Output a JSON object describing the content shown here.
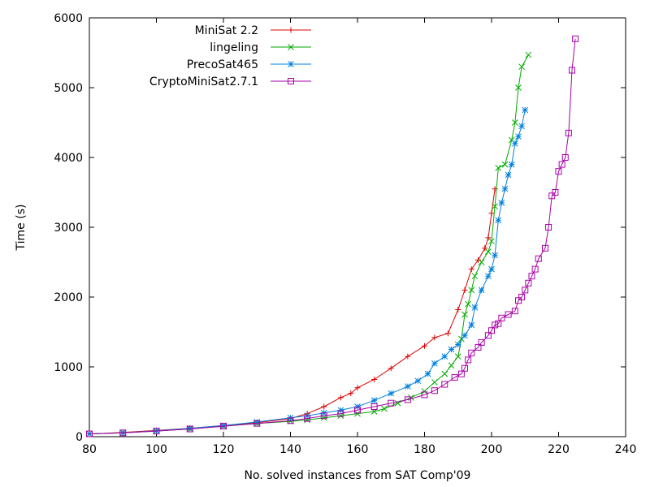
{
  "chart_data": {
    "type": "line",
    "title": "",
    "xlabel": "No. solved instances from SAT Comp'09",
    "ylabel": "Time (s)",
    "xlim": [
      80,
      240
    ],
    "ylim": [
      0,
      6000
    ],
    "xticks": [
      80,
      100,
      120,
      140,
      160,
      180,
      200,
      220,
      240
    ],
    "yticks": [
      0,
      1000,
      2000,
      3000,
      4000,
      5000,
      6000
    ],
    "grid": false,
    "legend": "top-left",
    "series": [
      {
        "name": "MiniSat 2.2",
        "color": "#dd0000",
        "marker": "plus",
        "points": [
          [
            80,
            40
          ],
          [
            90,
            60
          ],
          [
            100,
            90
          ],
          [
            110,
            120
          ],
          [
            120,
            160
          ],
          [
            130,
            200
          ],
          [
            140,
            260
          ],
          [
            145,
            330
          ],
          [
            150,
            430
          ],
          [
            155,
            560
          ],
          [
            158,
            620
          ],
          [
            160,
            700
          ],
          [
            165,
            820
          ],
          [
            170,
            980
          ],
          [
            175,
            1150
          ],
          [
            180,
            1300
          ],
          [
            183,
            1420
          ],
          [
            187,
            1480
          ],
          [
            190,
            1820
          ],
          [
            192,
            2100
          ],
          [
            194,
            2400
          ],
          [
            196,
            2530
          ],
          [
            198,
            2700
          ],
          [
            199,
            2850
          ],
          [
            200,
            3200
          ],
          [
            201,
            3550
          ]
        ]
      },
      {
        "name": "lingeling",
        "color": "#00aa00",
        "marker": "x",
        "points": [
          [
            80,
            40
          ],
          [
            90,
            55
          ],
          [
            100,
            80
          ],
          [
            110,
            110
          ],
          [
            120,
            150
          ],
          [
            130,
            190
          ],
          [
            140,
            220
          ],
          [
            145,
            240
          ],
          [
            150,
            270
          ],
          [
            155,
            300
          ],
          [
            160,
            330
          ],
          [
            165,
            360
          ],
          [
            168,
            400
          ],
          [
            172,
            480
          ],
          [
            176,
            560
          ],
          [
            180,
            650
          ],
          [
            183,
            780
          ],
          [
            186,
            900
          ],
          [
            188,
            1020
          ],
          [
            190,
            1150
          ],
          [
            191,
            1400
          ],
          [
            192,
            1750
          ],
          [
            193,
            1900
          ],
          [
            194,
            2100
          ],
          [
            195,
            2300
          ],
          [
            197,
            2500
          ],
          [
            199,
            2650
          ],
          [
            200,
            2800
          ],
          [
            201,
            3300
          ],
          [
            202,
            3850
          ],
          [
            204,
            3900
          ],
          [
            206,
            4250
          ],
          [
            207,
            4500
          ],
          [
            208,
            5000
          ],
          [
            209,
            5300
          ],
          [
            211,
            5470
          ]
        ]
      },
      {
        "name": "PrecoSat465",
        "color": "#0080dd",
        "marker": "star",
        "points": [
          [
            80,
            40
          ],
          [
            90,
            55
          ],
          [
            100,
            85
          ],
          [
            110,
            120
          ],
          [
            120,
            160
          ],
          [
            130,
            210
          ],
          [
            140,
            270
          ],
          [
            145,
            300
          ],
          [
            150,
            340
          ],
          [
            155,
            380
          ],
          [
            160,
            430
          ],
          [
            165,
            520
          ],
          [
            170,
            620
          ],
          [
            175,
            720
          ],
          [
            178,
            800
          ],
          [
            181,
            900
          ],
          [
            183,
            1050
          ],
          [
            186,
            1150
          ],
          [
            188,
            1250
          ],
          [
            190,
            1320
          ],
          [
            192,
            1450
          ],
          [
            194,
            1600
          ],
          [
            195,
            1850
          ],
          [
            197,
            2100
          ],
          [
            199,
            2300
          ],
          [
            200,
            2400
          ],
          [
            201,
            2600
          ],
          [
            202,
            3100
          ],
          [
            203,
            3350
          ],
          [
            204,
            3550
          ],
          [
            205,
            3750
          ],
          [
            206,
            3900
          ],
          [
            207,
            4200
          ],
          [
            208,
            4300
          ],
          [
            209,
            4450
          ],
          [
            210,
            4680
          ]
        ]
      },
      {
        "name": "CryptoMiniSat2.7.1",
        "color": "#aa00aa",
        "marker": "square",
        "points": [
          [
            80,
            40
          ],
          [
            90,
            55
          ],
          [
            100,
            80
          ],
          [
            110,
            110
          ],
          [
            120,
            150
          ],
          [
            130,
            190
          ],
          [
            140,
            230
          ],
          [
            145,
            260
          ],
          [
            150,
            300
          ],
          [
            155,
            330
          ],
          [
            160,
            380
          ],
          [
            165,
            430
          ],
          [
            170,
            480
          ],
          [
            175,
            530
          ],
          [
            180,
            600
          ],
          [
            183,
            660
          ],
          [
            186,
            750
          ],
          [
            189,
            850
          ],
          [
            191,
            900
          ],
          [
            192,
            980
          ],
          [
            193,
            1100
          ],
          [
            194,
            1200
          ],
          [
            196,
            1280
          ],
          [
            197,
            1350
          ],
          [
            199,
            1450
          ],
          [
            200,
            1520
          ],
          [
            201,
            1600
          ],
          [
            202,
            1620
          ],
          [
            203,
            1700
          ],
          [
            205,
            1750
          ],
          [
            207,
            1800
          ],
          [
            208,
            1950
          ],
          [
            209,
            2000
          ],
          [
            210,
            2100
          ],
          [
            211,
            2200
          ],
          [
            212,
            2300
          ],
          [
            213,
            2400
          ],
          [
            214,
            2550
          ],
          [
            216,
            2700
          ],
          [
            217,
            3000
          ],
          [
            218,
            3450
          ],
          [
            219,
            3500
          ],
          [
            220,
            3800
          ],
          [
            221,
            3900
          ],
          [
            222,
            4000
          ],
          [
            223,
            4350
          ],
          [
            224,
            5250
          ],
          [
            225,
            5700
          ]
        ]
      }
    ]
  }
}
